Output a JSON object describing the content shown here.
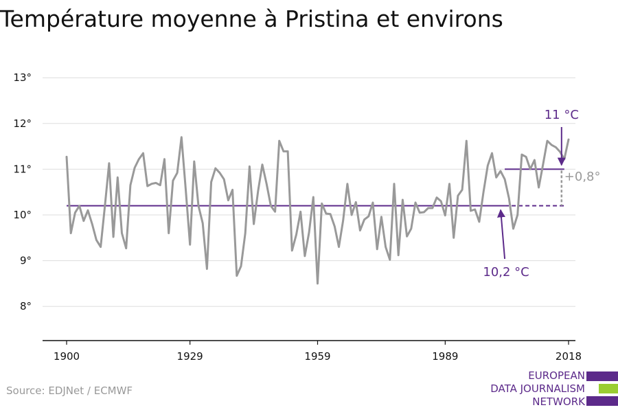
{
  "title": "Température moyenne à Pristina et environs",
  "source": "Source: EDJNet / ECMWF",
  "logo": {
    "line1": "EUROPEAN",
    "line2": "DATA JOURNALISM",
    "line3": "NETWORK"
  },
  "colors": {
    "series": "#999999",
    "mean_lines": "#5c2a8a",
    "gridline": "#dddddd",
    "axis": "#111111",
    "logo_purple": "#5c2a8a",
    "logo_green": "#9acd32"
  },
  "chart_data": {
    "type": "line",
    "title": "Température moyenne à Pristina et environs",
    "xlabel": "",
    "ylabel": "",
    "xlim": [
      1900,
      2018
    ],
    "ylim": [
      7.5,
      13.5
    ],
    "x_ticks": [
      1900,
      1929,
      1959,
      1989,
      2018
    ],
    "y_ticks": [
      {
        "value": 8,
        "label": "8°"
      },
      {
        "value": 9,
        "label": "9°"
      },
      {
        "value": 10,
        "label": "10°"
      },
      {
        "value": 11,
        "label": "11°"
      },
      {
        "value": 12,
        "label": "12°"
      },
      {
        "value": 13,
        "label": "13°"
      }
    ],
    "grid": true,
    "series": [
      {
        "x": [
          1900,
          1901,
          1902,
          1903,
          1904,
          1905,
          1906,
          1907,
          1908,
          1909,
          1910,
          1911,
          1912,
          1913,
          1914,
          1915,
          1916,
          1917,
          1918,
          1919,
          1920,
          1921,
          1922,
          1923,
          1924,
          1925,
          1926,
          1927,
          1928,
          1929,
          1930,
          1931,
          1932,
          1933,
          1934,
          1935,
          1936,
          1937,
          1938,
          1939,
          1940,
          1941,
          1942,
          1943,
          1944,
          1945,
          1946,
          1947,
          1948,
          1949,
          1950,
          1951,
          1952,
          1953,
          1954,
          1955,
          1956,
          1957,
          1958,
          1959,
          1960,
          1961,
          1962,
          1963,
          1964,
          1965,
          1966,
          1967,
          1968,
          1969,
          1970,
          1971,
          1972,
          1973,
          1974,
          1975,
          1976,
          1977,
          1978,
          1979,
          1980,
          1981,
          1982,
          1983,
          1984,
          1985,
          1986,
          1987,
          1988,
          1989,
          1990,
          1991,
          1992,
          1993,
          1994,
          1995,
          1996,
          1997,
          1998,
          1999,
          2000,
          2001,
          2002,
          2003,
          2004,
          2005,
          2006,
          2007,
          2008,
          2009,
          2010,
          2011,
          2012,
          2013,
          2014,
          2015,
          2016,
          2017,
          2018
        ],
        "values": [
          11.27,
          9.6,
          10.05,
          10.2,
          9.87,
          10.1,
          9.8,
          9.45,
          9.3,
          10.2,
          11.13,
          9.52,
          10.82,
          9.6,
          9.27,
          10.65,
          11.03,
          11.22,
          11.35,
          10.63,
          10.68,
          10.7,
          10.65,
          11.22,
          9.6,
          10.75,
          10.92,
          11.7,
          10.55,
          9.35,
          11.17,
          10.2,
          9.82,
          8.82,
          10.72,
          11.02,
          10.92,
          10.78,
          10.32,
          10.55,
          8.67,
          8.88,
          9.6,
          11.06,
          9.8,
          10.52,
          11.1,
          10.68,
          10.2,
          10.07,
          11.62,
          11.39,
          11.39,
          9.22,
          9.57,
          10.07,
          9.1,
          9.62,
          10.39,
          8.5,
          10.25,
          10.03,
          10.02,
          9.75,
          9.3,
          9.88,
          10.68,
          10.0,
          10.28,
          9.66,
          9.9,
          9.97,
          10.27,
          9.25,
          9.96,
          9.3,
          9.02,
          10.68,
          9.12,
          10.33,
          9.53,
          9.7,
          10.27,
          10.05,
          10.06,
          10.15,
          10.15,
          10.38,
          10.3,
          9.99,
          10.68,
          9.5,
          10.42,
          10.55,
          11.62,
          10.09,
          10.12,
          9.85,
          10.5,
          11.08,
          11.35,
          10.82,
          10.96,
          10.78,
          10.36,
          9.7,
          10.0,
          11.32,
          11.27,
          11.0,
          11.2,
          10.6,
          11.1,
          11.62,
          11.53,
          11.48,
          11.38,
          11.22,
          11.65
        ]
      }
    ],
    "reference_lines": [
      {
        "from": 1900,
        "to": 2003,
        "value": 10.2,
        "style": "solid"
      },
      {
        "from": 2003,
        "to": 2017,
        "value": 10.2,
        "style": "dashed"
      },
      {
        "from": 2003,
        "to": 2017,
        "value": 11.0,
        "style": "solid"
      }
    ],
    "annotations": {
      "recent_mean": {
        "label": "11 °C",
        "value": 11.0,
        "x": 2017
      },
      "old_mean": {
        "label": "10,2 °C",
        "value": 10.2,
        "x": 2003
      },
      "difference": {
        "label": "+0,8°",
        "x": 2017,
        "from": 10.2,
        "to": 11.0
      }
    }
  }
}
